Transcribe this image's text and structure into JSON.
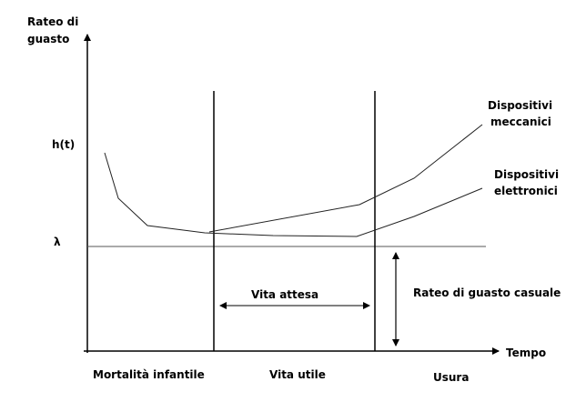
{
  "labels": {
    "y_axis_line1": "Rateo di",
    "y_axis_line2": "guasto",
    "h_t": "h(t)",
    "lambda": "λ",
    "x_axis": "Tempo",
    "mechanical_line1": "Dispositivi",
    "mechanical_line2": "meccanici",
    "electronic_line1": "Dispositivi",
    "electronic_line2": "elettronici",
    "vita_attesa": "Vita attesa",
    "random_failure": "Rateo di guasto casuale",
    "phase_infant": "Mortalità infantile",
    "phase_useful": "Vita utile",
    "phase_wear": "Usura"
  },
  "colors": {
    "stroke": "#000000",
    "curve": "#222222",
    "background": "#ffffff"
  }
}
